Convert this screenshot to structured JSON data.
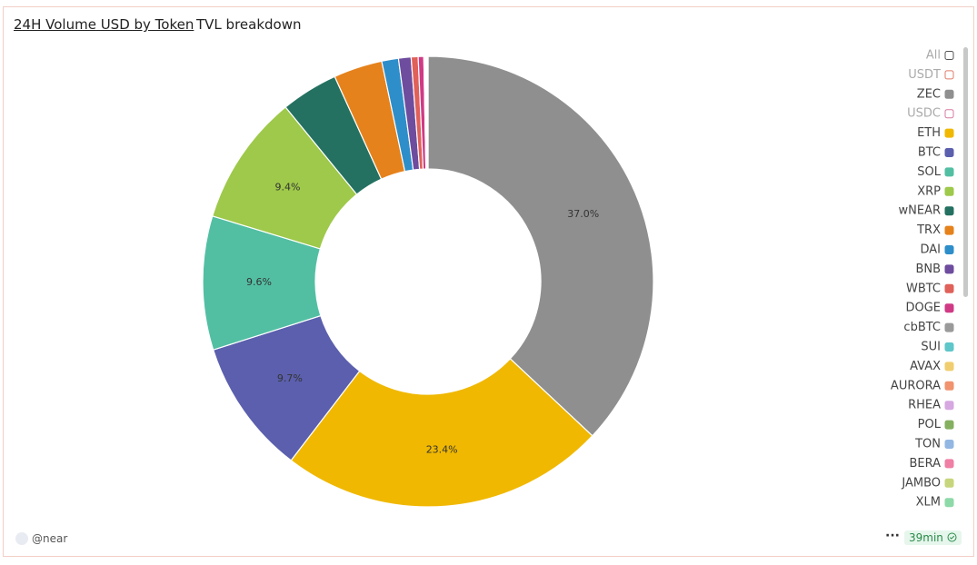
{
  "header": {
    "title": "24H Volume USD by Token",
    "tab": "TVL breakdown"
  },
  "chart_data": {
    "type": "donut",
    "categories": [
      "USDT",
      "ZEC",
      "USDC",
      "ETH",
      "BTC",
      "SOL",
      "XRP",
      "wNEAR",
      "TRX",
      "DAI",
      "BNB",
      "WBTC",
      "DOGE",
      "cbBTC",
      "SUI",
      "AVAX",
      "AURORA",
      "RHEA",
      "POL",
      "TON",
      "BERA",
      "JAMBO",
      "XLM"
    ],
    "values": [
      null,
      37.0,
      null,
      23.4,
      9.7,
      9.6,
      9.4,
      4.1,
      3.5,
      1.2,
      0.9,
      0.5,
      0.4,
      0.06,
      0.05,
      0.04,
      0.03,
      0.03,
      0.03,
      0.02,
      0.02,
      0.01,
      0.01
    ],
    "value_labels": [
      null,
      "37.0%",
      null,
      "23.4%",
      "9.7%",
      "9.6%",
      "9.4%",
      null,
      null,
      null,
      null,
      null,
      null,
      null,
      null,
      null,
      null,
      null,
      null,
      null,
      null,
      null,
      null
    ],
    "colors": [
      "#e07b6a",
      "#8f8f8f",
      "#d77aa0",
      "#f0b800",
      "#5b5fad",
      "#52bfa3",
      "#9ec94a",
      "#247161",
      "#e5821c",
      "#2e8ec9",
      "#6e4c9e",
      "#e0605a",
      "#d03a85",
      "#9a9a9a",
      "#5fc6c9",
      "#f0cd6e",
      "#f0936e",
      "#d6a7e0",
      "#85b060",
      "#93b7e3",
      "#ef7fa4",
      "#c7d67c",
      "#8ed9a8"
    ],
    "selected": [
      false,
      true,
      false,
      true,
      true,
      true,
      true,
      true,
      true,
      true,
      true,
      true,
      true,
      true,
      true,
      true,
      true,
      true,
      true,
      true,
      true,
      true,
      true
    ],
    "legend_all_label": "All"
  },
  "footer": {
    "user": "@near",
    "age": "39min"
  }
}
